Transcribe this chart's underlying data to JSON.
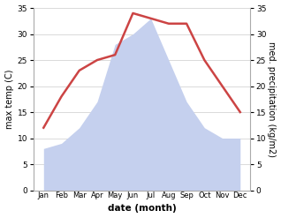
{
  "months": [
    "Jan",
    "Feb",
    "Mar",
    "Apr",
    "May",
    "Jun",
    "Jul",
    "Aug",
    "Sep",
    "Oct",
    "Nov",
    "Dec"
  ],
  "temperature": [
    12,
    18,
    23,
    25,
    26,
    34,
    33,
    32,
    32,
    25,
    20,
    15
  ],
  "precipitation": [
    8,
    9,
    12,
    17,
    28,
    30,
    33,
    25,
    17,
    12,
    10,
    10
  ],
  "temp_color": "#cc4444",
  "precip_color": "#c5d0ee",
  "ylim": [
    0,
    35
  ],
  "yticks": [
    0,
    5,
    10,
    15,
    20,
    25,
    30,
    35
  ],
  "ylabel_left": "max temp (C)",
  "ylabel_right": "med. precipitation (kg/m2)",
  "xlabel": "date (month)",
  "bg_color": "#ffffff",
  "grid_color": "#cccccc",
  "spine_color": "#aaaaaa"
}
